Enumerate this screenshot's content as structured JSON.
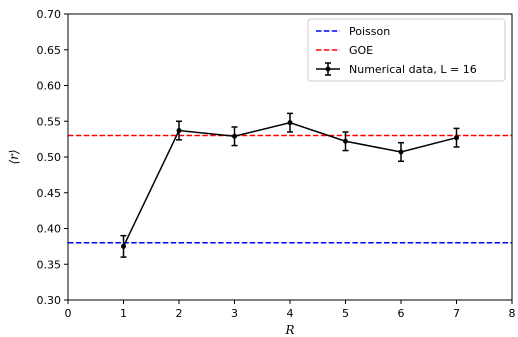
{
  "chart_data": {
    "type": "line",
    "xlabel": "R",
    "ylabel": "⟨r⟩",
    "xlim": [
      0,
      8
    ],
    "ylim": [
      0.3,
      0.7
    ],
    "xticks": [
      "0",
      "1",
      "2",
      "3",
      "4",
      "5",
      "6",
      "7",
      "8"
    ],
    "yticks": [
      "0.30",
      "0.35",
      "0.40",
      "0.45",
      "0.50",
      "0.55",
      "0.60",
      "0.65",
      "0.70"
    ],
    "grid": false,
    "legend_position": "top-right",
    "reference_lines": [
      {
        "name": "Poisson",
        "y": 0.38,
        "color": "#0000ff",
        "style": "dashed"
      },
      {
        "name": "GOE",
        "y": 0.53,
        "color": "#ff0000",
        "style": "dashed"
      }
    ],
    "series": [
      {
        "name": "Numerical data, L = 16",
        "color": "#000000",
        "x": [
          1,
          2,
          3,
          4,
          5,
          6,
          7
        ],
        "y": [
          0.375,
          0.537,
          0.529,
          0.548,
          0.522,
          0.507,
          0.527
        ],
        "yerr": [
          0.015,
          0.013,
          0.013,
          0.013,
          0.013,
          0.013,
          0.013
        ]
      }
    ]
  }
}
